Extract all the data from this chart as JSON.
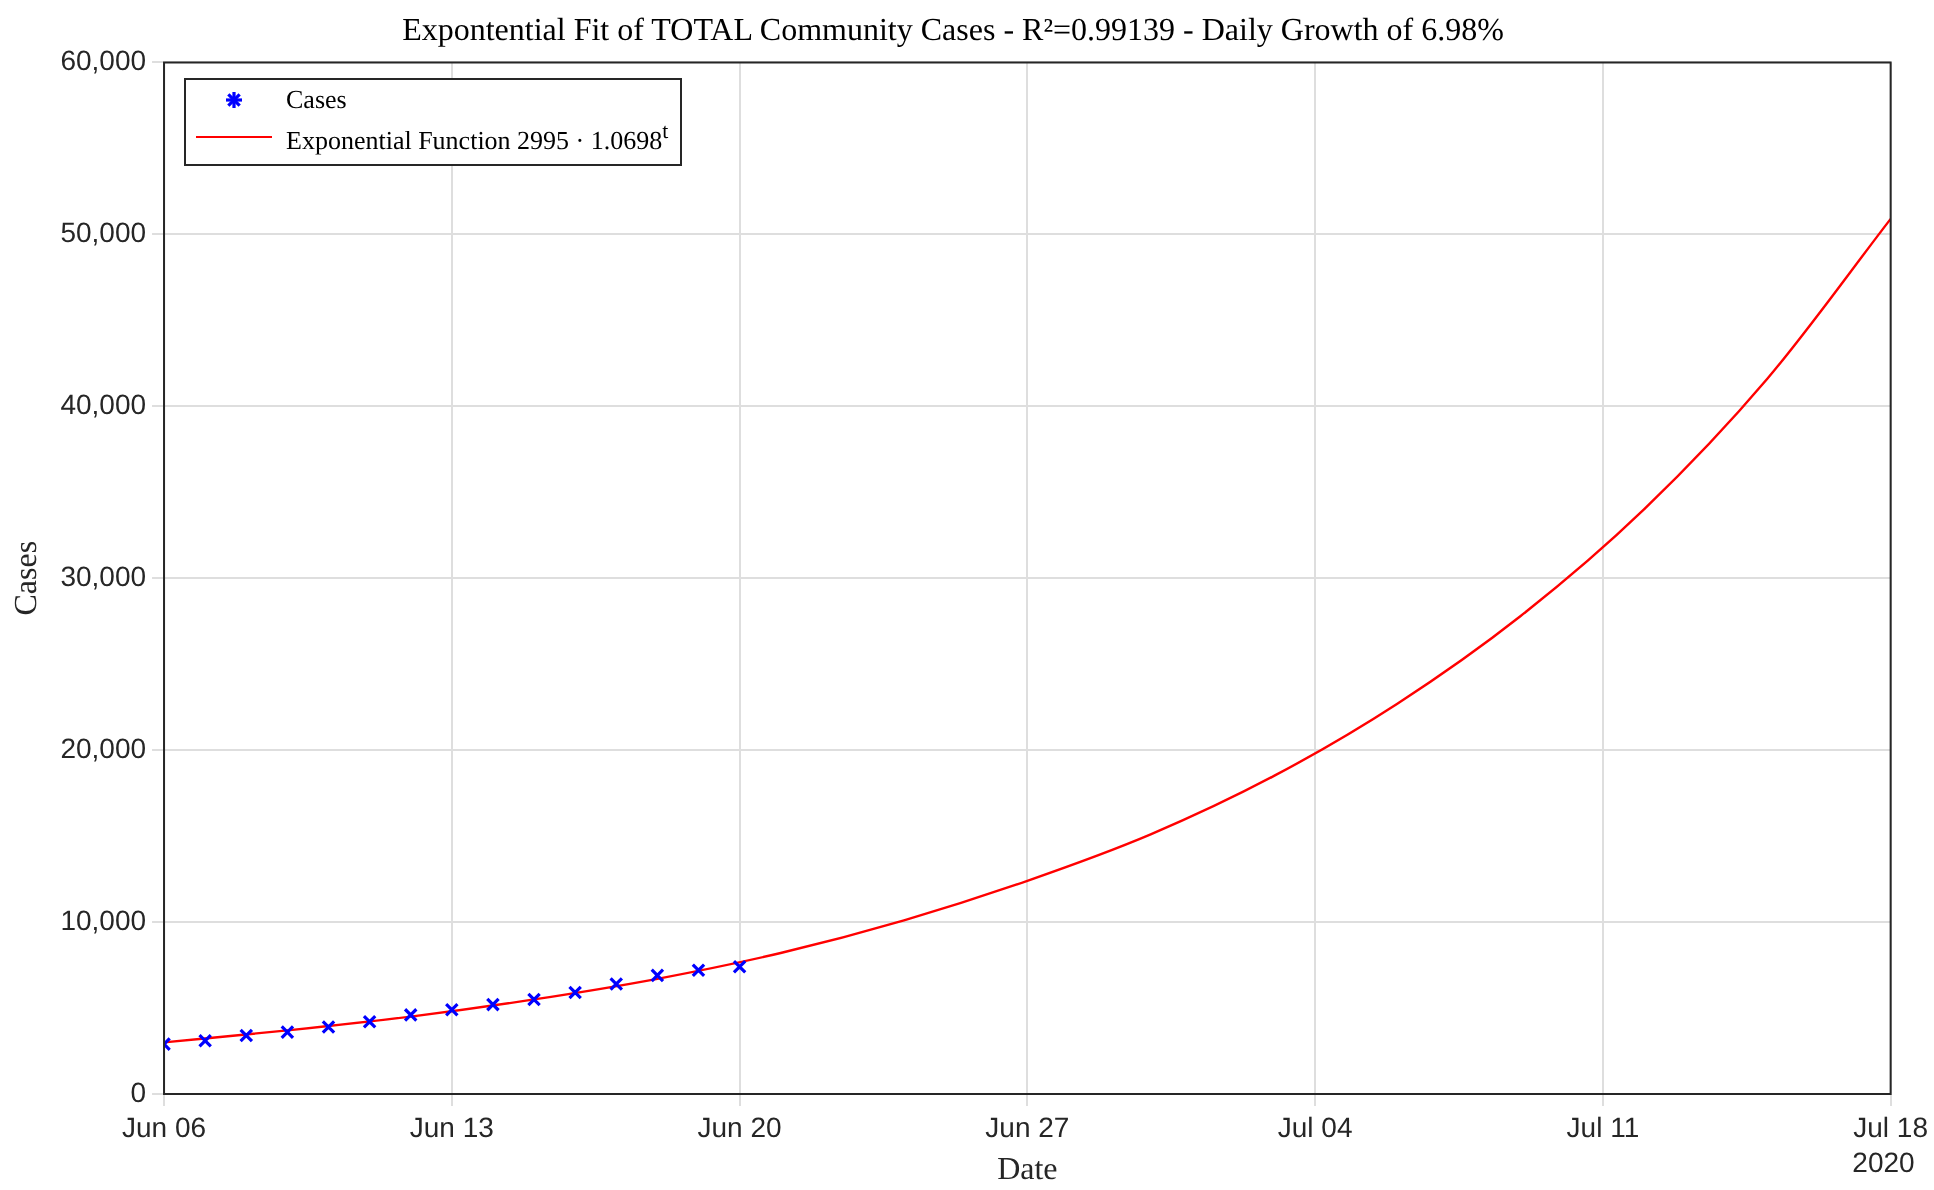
{
  "chart_data": {
    "type": "line",
    "title": "Expontential Fit of TOTAL Community Cases - R²=0.99139 - Daily Growth of 6.98%",
    "xlabel": "Date",
    "ylabel": "Cases",
    "annotations": [
      "2020"
    ],
    "xlim": [
      "2020-06-06",
      "2020-07-18"
    ],
    "xticks": [
      {
        "value": "2020-06-06",
        "label": "Jun 06"
      },
      {
        "value": "2020-06-13",
        "label": "Jun 13"
      },
      {
        "value": "2020-06-20",
        "label": "Jun 20"
      },
      {
        "value": "2020-06-27",
        "label": "Jun 27"
      },
      {
        "value": "2020-07-04",
        "label": "Jul 04"
      },
      {
        "value": "2020-07-11",
        "label": "Jul 11"
      },
      {
        "value": "2020-07-18",
        "label": "Jul 18"
      }
    ],
    "ylim": [
      0,
      60000
    ],
    "yticks": [
      {
        "value": 0,
        "label": "0"
      },
      {
        "value": 10000,
        "label": "10,000"
      },
      {
        "value": 20000,
        "label": "20,000"
      },
      {
        "value": 30000,
        "label": "30,000"
      },
      {
        "value": 40000,
        "label": "40,000"
      },
      {
        "value": 50000,
        "label": "50,000"
      },
      {
        "value": 60000,
        "label": "60,000"
      }
    ],
    "grid": true,
    "legend": "top left",
    "series": [
      {
        "name": "Cases",
        "type": "scatter",
        "marker": "cross",
        "color": "#0000ff",
        "x": [
          "2020-06-06",
          "2020-06-07",
          "2020-06-08",
          "2020-06-09",
          "2020-06-10",
          "2020-06-11",
          "2020-06-12",
          "2020-06-13",
          "2020-06-14",
          "2020-06-15",
          "2020-06-16",
          "2020-06-17",
          "2020-06-18",
          "2020-06-19",
          "2020-06-20"
        ],
        "values": [
          2900,
          3100,
          3400,
          3600,
          3900,
          4200,
          4600,
          4900,
          5200,
          5500,
          5900,
          6400,
          6900,
          7200,
          7400
        ]
      },
      {
        "name": "Exponential Function 2995 · 1.0698$^{t}$",
        "type": "line",
        "marker": "none",
        "line_style": "solid",
        "color": "#ff0000",
        "x": [
          "2020-06-06",
          "2020-06-09",
          "2020-06-12",
          "2020-06-15",
          "2020-06-18",
          "2020-06-21",
          "2020-06-24",
          "2020-06-27",
          "2020-06-30",
          "2020-07-03",
          "2020-07-06",
          "2020-07-09",
          "2020-07-12",
          "2020-07-15",
          "2020-07-18"
        ],
        "values": [
          3000,
          3700,
          4500,
          5500,
          6700,
          8200,
          10100,
          12400,
          15100,
          18500,
          22700,
          27800,
          34000,
          41600,
          50900
        ]
      }
    ]
  }
}
